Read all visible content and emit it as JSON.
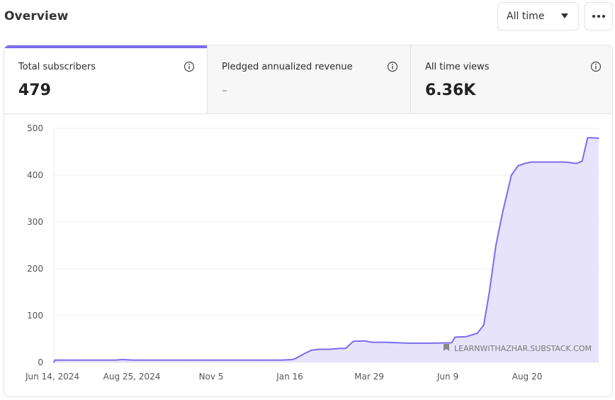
{
  "header": {
    "title": "Overview"
  },
  "range_select": {
    "value": "All time"
  },
  "stats": [
    {
      "label": "Total subscribers",
      "value": "479"
    },
    {
      "label": "Pledged annualized revenue",
      "value": "-"
    },
    {
      "label": "All time views",
      "value": "6.36K"
    }
  ],
  "watermark": "LEARNWITHAZHAR.SUBSTACK.COM",
  "colors": {
    "accent": "#7b6cf0",
    "fill": "#e4e0fb",
    "grid": "#efefef"
  },
  "chart_data": {
    "type": "area",
    "title": "",
    "xlabel": "",
    "ylabel": "",
    "ylim": [
      0,
      500
    ],
    "yticks": [
      0,
      100,
      200,
      300,
      400,
      500
    ],
    "xticks": [
      "Jun 14, 2024",
      "Aug 25, 2024",
      "Nov 5",
      "Jan 16",
      "Mar 29",
      "Jun 9",
      "Aug 20"
    ],
    "x": [
      "2024-06-14",
      "2024-06-15",
      "2024-07-01",
      "2024-07-20",
      "2024-08-08",
      "2024-08-15",
      "2024-08-25",
      "2024-09-15",
      "2024-10-15",
      "2024-11-05",
      "2024-12-15",
      "2025-01-05",
      "2025-01-16",
      "2025-01-20",
      "2025-01-26",
      "2025-02-02",
      "2025-02-09",
      "2025-02-18",
      "2025-02-28",
      "2025-03-05",
      "2025-03-12",
      "2025-03-22",
      "2025-03-29",
      "2025-04-10",
      "2025-05-01",
      "2025-05-20",
      "2025-06-09",
      "2025-06-12",
      "2025-06-22",
      "2025-07-02",
      "2025-07-08",
      "2025-07-13",
      "2025-07-19",
      "2025-07-25",
      "2025-08-02",
      "2025-08-08",
      "2025-08-14",
      "2025-08-20",
      "2025-08-25",
      "2025-09-01",
      "2025-09-10",
      "2025-09-20",
      "2025-09-30",
      "2025-10-05",
      "2025-10-10",
      "2025-10-14",
      "2025-10-20"
    ],
    "series": [
      {
        "values": [
          0,
          5,
          5,
          5,
          5,
          6,
          5,
          5,
          5,
          5,
          5,
          5,
          6,
          10,
          18,
          26,
          28,
          28,
          30,
          30,
          45,
          46,
          43,
          43,
          41,
          41,
          42,
          54,
          55,
          62,
          80,
          150,
          250,
          320,
          400,
          420,
          425,
          428,
          428,
          428,
          428,
          428,
          425,
          430,
          480,
          480,
          479
        ]
      }
    ]
  }
}
